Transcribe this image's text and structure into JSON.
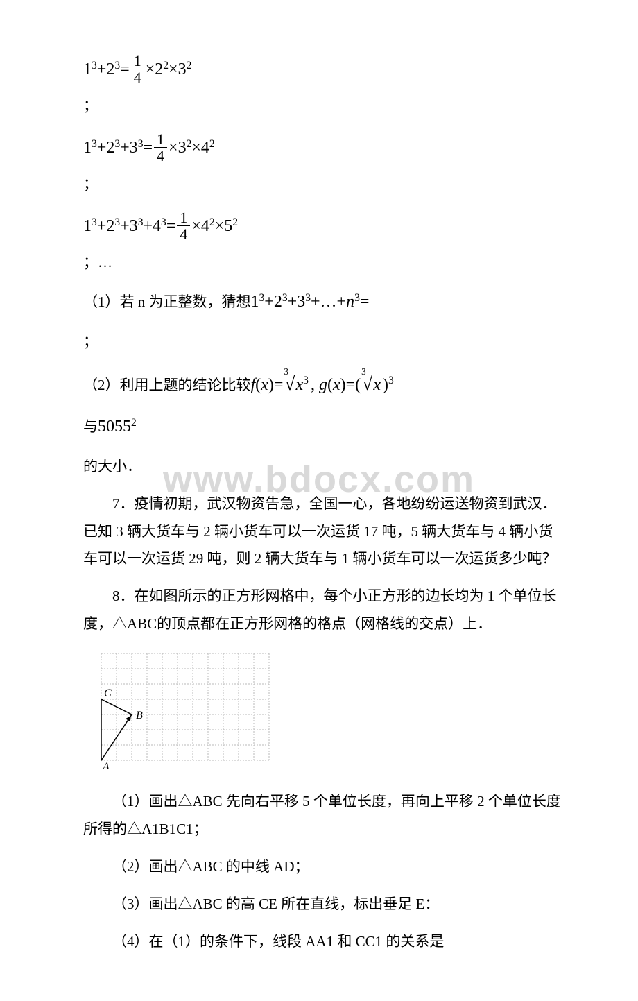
{
  "watermark": "www.bdocx.com",
  "eq1": {
    "lhs": "1^3+2^3=",
    "num": "1",
    "den": "4",
    "rhs": "×2^2×3^2"
  },
  "eq2": {
    "lhs": "1^3+2^3+3^3=",
    "num": "1",
    "den": "4",
    "rhs": "×3^2×4^2"
  },
  "eq3": {
    "lhs": "1^3+2^3+3^3+4^3=",
    "num": "1",
    "den": "4",
    "rhs": "×4^2×5^2"
  },
  "ellipsis_line": "；…",
  "q1_prefix": "（1）若 n 为正整数，猜想",
  "q1_expr": "1^3+2^3+3^3+…+n^3=",
  "q2_prefix": "（2）利用上题的结论比较",
  "q2_func": "f(x)=",
  "q2_root1_body": "x^3",
  "q2_mid": ", g(x)=(",
  "q2_root2_body": "x",
  "q2_tail": ")^3",
  "q2_with": "与",
  "q2_num": "5055^2",
  "q2_size": "的大小．",
  "p7": "7．疫情初期，武汉物资告急，全国一心，各地纷纷运送物资到武汉．已知 3 辆大货车与 2 辆小货车可以一次运货 17 吨，5 辆大货车与 4 辆小货车可以一次运货 29 吨，则 2 辆大货车与 1 辆小货车可以一次运货多少吨？",
  "p8": "8．在如图所示的正方形网格中，每个小正方形的边长均为 1 个单位长度，△ABC的顶点都在正方形网格的格点（网格线的交点）上．",
  "s8_1": "（1）画出△ABC 先向右平移 5 个单位长度，再向上平移 2 个单位长度所得的△A1B1C1；",
  "s8_2": "（2）画出△ABC 的中线 AD；",
  "s8_3": "（3）画出△ABC 的高 CE 所在直线，标出垂足 E：",
  "s8_4": "（4）在（1）的条件下，线段 AA1 和 CC1 的关系是",
  "labels": {
    "A": "A",
    "B": "B",
    "C": "C"
  },
  "grid": {
    "cols": 11,
    "rows": 7,
    "cell": 22,
    "stroke": "#b8b8b8",
    "dash": "2,2",
    "triangle_stroke": "#000000",
    "A": [
      0,
      7
    ],
    "B": [
      2,
      4
    ],
    "C": [
      0,
      3
    ],
    "label_font": "italic 16px 'Times New Roman', serif"
  }
}
